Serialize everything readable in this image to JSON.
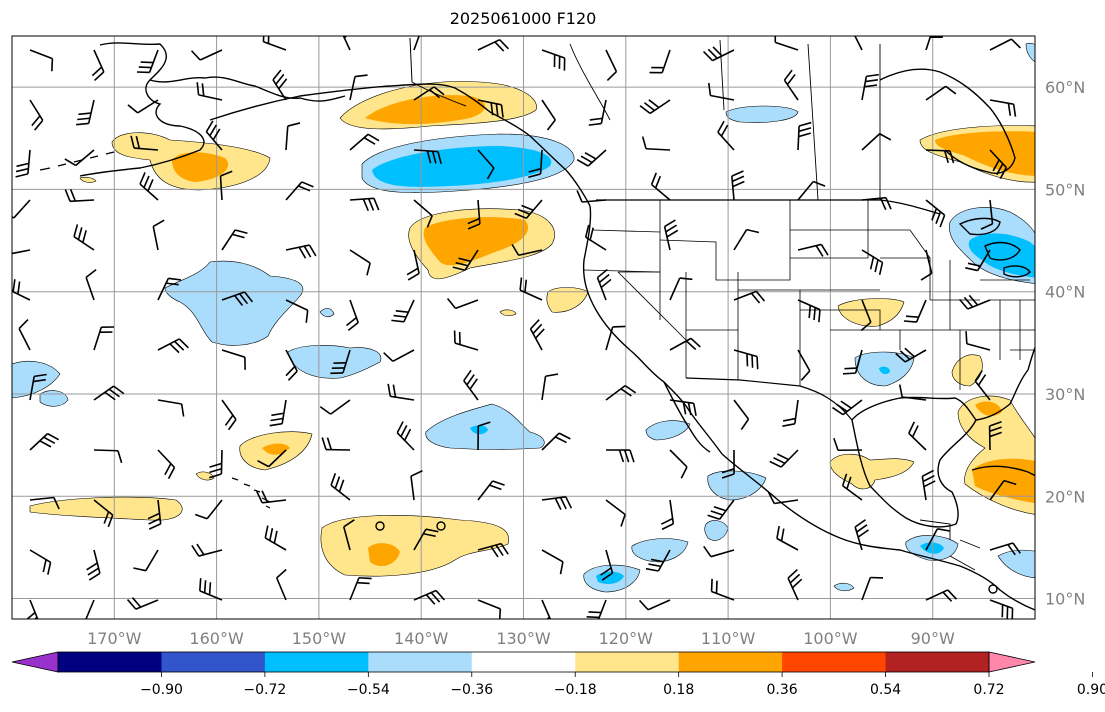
{
  "title": "2025061000 F120",
  "map": {
    "lon_range": [
      -180,
      -80
    ],
    "lat_range": [
      8,
      65
    ],
    "lat_ticks": [
      {
        "value": 60,
        "label": "60°N"
      },
      {
        "value": 50,
        "label": "50°N"
      },
      {
        "value": 40,
        "label": "40°N"
      },
      {
        "value": 30,
        "label": "30°N"
      },
      {
        "value": 20,
        "label": "20°N"
      },
      {
        "value": 10,
        "label": "10°N"
      }
    ],
    "lon_ticks": [
      {
        "value": -170,
        "label": "170°W"
      },
      {
        "value": -160,
        "label": "160°W"
      },
      {
        "value": -150,
        "label": "150°W"
      },
      {
        "value": -140,
        "label": "140°W"
      },
      {
        "value": -130,
        "label": "130°W"
      },
      {
        "value": -120,
        "label": "120°W"
      },
      {
        "value": -110,
        "label": "110°W"
      },
      {
        "value": -100,
        "label": "100°W"
      },
      {
        "value": -90,
        "label": "90°W"
      }
    ]
  },
  "colorbar": {
    "extend": "both",
    "under_color": "#9932cc",
    "over_color": "#ff88aa",
    "colors": [
      "#000080",
      "#3355cc",
      "#00bfff",
      "#aadcfb",
      "#ffffff",
      "#ffe68c",
      "#ffa500",
      "#ff4500",
      "#b22222"
    ],
    "tick_values": [
      -0.9,
      -0.72,
      -0.54,
      -0.36,
      -0.18,
      0.18,
      0.36,
      0.54,
      0.72,
      0.9
    ],
    "tick_labels": [
      "−0.90",
      "−0.72",
      "−0.54",
      "−0.36",
      "−0.18",
      "0.18",
      "0.36",
      "0.54",
      "0.72",
      "0.90"
    ]
  }
}
